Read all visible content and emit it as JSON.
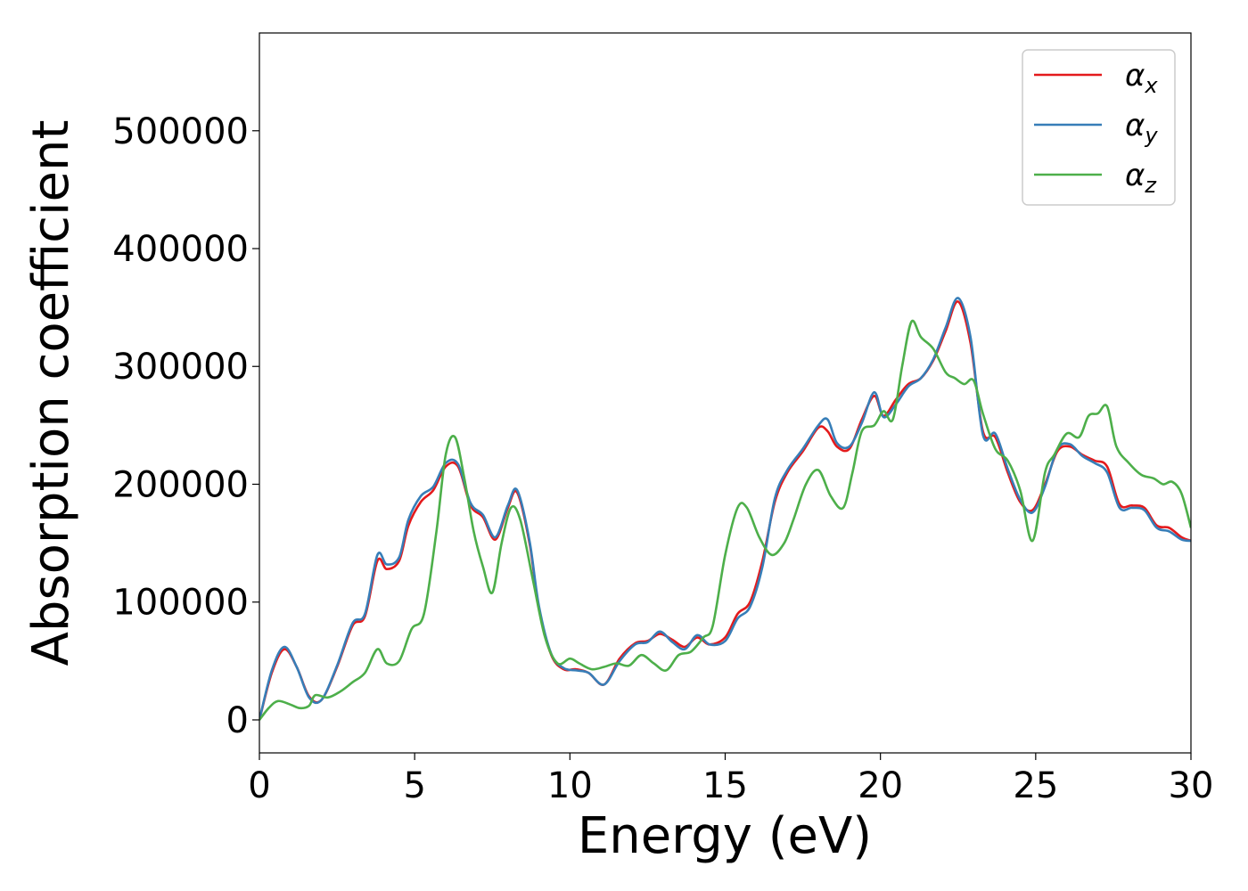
{
  "chart_data": {
    "type": "line",
    "xlabel": "Energy (eV)",
    "ylabel": "Absorption coefficient",
    "xlim": [
      0,
      30
    ],
    "ylim": [
      -28000,
      583000
    ],
    "xticks": [
      "0",
      "5",
      "10",
      "15",
      "20",
      "25",
      "30"
    ],
    "yticks": [
      "0",
      "100000",
      "200000",
      "300000",
      "400000",
      "500000"
    ],
    "grid": false,
    "legend_position": "top-right",
    "series": [
      {
        "name": "α_x",
        "label_main": "α",
        "label_sub": "x",
        "color": "#e41a1c",
        "x": [
          0,
          0.4,
          0.8,
          1.2,
          1.6,
          2.0,
          2.5,
          3.0,
          3.4,
          3.8,
          4.1,
          4.5,
          4.8,
          5.2,
          5.6,
          6.0,
          6.4,
          6.8,
          7.2,
          7.6,
          8.0,
          8.3,
          8.7,
          9.0,
          9.4,
          9.8,
          10.2,
          10.6,
          11.1,
          11.6,
          12.1,
          12.5,
          12.9,
          13.3,
          13.7,
          14.1,
          14.5,
          15.0,
          15.4,
          15.8,
          16.2,
          16.6,
          17.0,
          17.5,
          18.0,
          18.3,
          18.6,
          19.0,
          19.4,
          19.8,
          20.1,
          20.5,
          20.9,
          21.3,
          21.7,
          22.1,
          22.5,
          22.9,
          23.3,
          23.7,
          24.1,
          24.5,
          24.9,
          25.3,
          25.7,
          26.1,
          26.5,
          26.9,
          27.3,
          27.7,
          28.1,
          28.5,
          28.9,
          29.3,
          29.7,
          30.0
        ],
        "values": [
          0,
          40000,
          60000,
          45000,
          20000,
          17000,
          45000,
          80000,
          88000,
          135000,
          128000,
          135000,
          165000,
          185000,
          195000,
          215000,
          215000,
          182000,
          172000,
          153000,
          180000,
          193000,
          150000,
          95000,
          55000,
          43000,
          43000,
          40000,
          30000,
          52000,
          65000,
          67000,
          73000,
          68000,
          62000,
          70000,
          64000,
          70000,
          90000,
          100000,
          135000,
          185000,
          210000,
          228000,
          248000,
          245000,
          232000,
          230000,
          255000,
          275000,
          258000,
          272000,
          285000,
          290000,
          305000,
          330000,
          355000,
          320000,
          245000,
          240000,
          210000,
          185000,
          178000,
          200000,
          228000,
          232000,
          225000,
          220000,
          215000,
          183000,
          182000,
          180000,
          165000,
          163000,
          155000,
          152000
        ]
      },
      {
        "name": "α_y",
        "label_main": "α",
        "label_sub": "y",
        "color": "#377eb8",
        "x": [
          0,
          0.4,
          0.8,
          1.2,
          1.6,
          2.0,
          2.5,
          3.0,
          3.4,
          3.8,
          4.1,
          4.5,
          4.8,
          5.2,
          5.6,
          6.0,
          6.4,
          6.8,
          7.2,
          7.6,
          8.0,
          8.3,
          8.7,
          9.0,
          9.4,
          9.8,
          10.2,
          10.6,
          11.1,
          11.6,
          12.1,
          12.5,
          12.9,
          13.3,
          13.7,
          14.1,
          14.5,
          15.0,
          15.4,
          15.8,
          16.2,
          16.6,
          17.0,
          17.5,
          18.0,
          18.3,
          18.6,
          19.0,
          19.4,
          19.8,
          20.1,
          20.5,
          20.9,
          21.3,
          21.7,
          22.1,
          22.5,
          22.9,
          23.3,
          23.7,
          24.1,
          24.5,
          24.9,
          25.3,
          25.7,
          26.1,
          26.5,
          26.9,
          27.3,
          27.7,
          28.1,
          28.5,
          28.9,
          29.3,
          29.7,
          30.0
        ],
        "values": [
          0,
          42000,
          62000,
          45000,
          19000,
          17000,
          46000,
          82000,
          90000,
          140000,
          132000,
          138000,
          170000,
          190000,
          198000,
          218000,
          217000,
          184000,
          174000,
          155000,
          182000,
          195000,
          152000,
          97000,
          56000,
          44000,
          42000,
          40000,
          30000,
          50000,
          64000,
          66000,
          75000,
          66000,
          60000,
          72000,
          64000,
          67000,
          86000,
          96000,
          130000,
          188000,
          212000,
          230000,
          250000,
          255000,
          235000,
          232000,
          252000,
          278000,
          257000,
          268000,
          283000,
          290000,
          306000,
          333000,
          358000,
          325000,
          242000,
          243000,
          213000,
          187000,
          176000,
          198000,
          230000,
          234000,
          224000,
          218000,
          210000,
          180000,
          180000,
          178000,
          163000,
          160000,
          153000,
          152000
        ]
      },
      {
        "name": "α_z",
        "label_main": "α",
        "label_sub": "z",
        "color": "#4daf4a",
        "x": [
          0,
          0.3,
          0.6,
          1.0,
          1.3,
          1.6,
          1.8,
          2.2,
          2.6,
          3.0,
          3.4,
          3.8,
          4.1,
          4.5,
          4.9,
          5.3,
          5.7,
          6.0,
          6.3,
          6.6,
          6.9,
          7.2,
          7.5,
          7.8,
          8.1,
          8.4,
          8.8,
          9.2,
          9.6,
          10.0,
          10.3,
          10.7,
          11.1,
          11.5,
          11.9,
          12.3,
          12.7,
          13.1,
          13.5,
          13.9,
          14.3,
          14.6,
          15.0,
          15.4,
          15.7,
          16.1,
          16.5,
          16.9,
          17.2,
          17.6,
          18.0,
          18.4,
          18.8,
          19.1,
          19.4,
          19.8,
          20.1,
          20.4,
          20.7,
          21.0,
          21.3,
          21.7,
          22.1,
          22.4,
          22.7,
          23.0,
          23.3,
          23.7,
          24.1,
          24.5,
          24.9,
          25.3,
          25.6,
          26.0,
          26.4,
          26.7,
          27.0,
          27.3,
          27.6,
          28.0,
          28.4,
          28.8,
          29.1,
          29.4,
          29.7,
          30.0
        ],
        "values": [
          0,
          10000,
          16000,
          13000,
          10000,
          12000,
          21000,
          19000,
          24000,
          32000,
          40000,
          60000,
          48000,
          50000,
          77000,
          90000,
          160000,
          225000,
          240000,
          205000,
          160000,
          130000,
          108000,
          150000,
          180000,
          170000,
          120000,
          70000,
          48000,
          52000,
          48000,
          43000,
          45000,
          48000,
          46000,
          55000,
          48000,
          42000,
          55000,
          58000,
          70000,
          80000,
          140000,
          180000,
          180000,
          155000,
          140000,
          150000,
          170000,
          200000,
          212000,
          190000,
          180000,
          210000,
          245000,
          250000,
          262000,
          255000,
          300000,
          338000,
          325000,
          315000,
          295000,
          290000,
          285000,
          288000,
          260000,
          230000,
          220000,
          195000,
          152000,
          210000,
          225000,
          243000,
          240000,
          258000,
          260000,
          266000,
          232000,
          218000,
          208000,
          205000,
          200000,
          202000,
          192000,
          163000
        ]
      }
    ]
  }
}
